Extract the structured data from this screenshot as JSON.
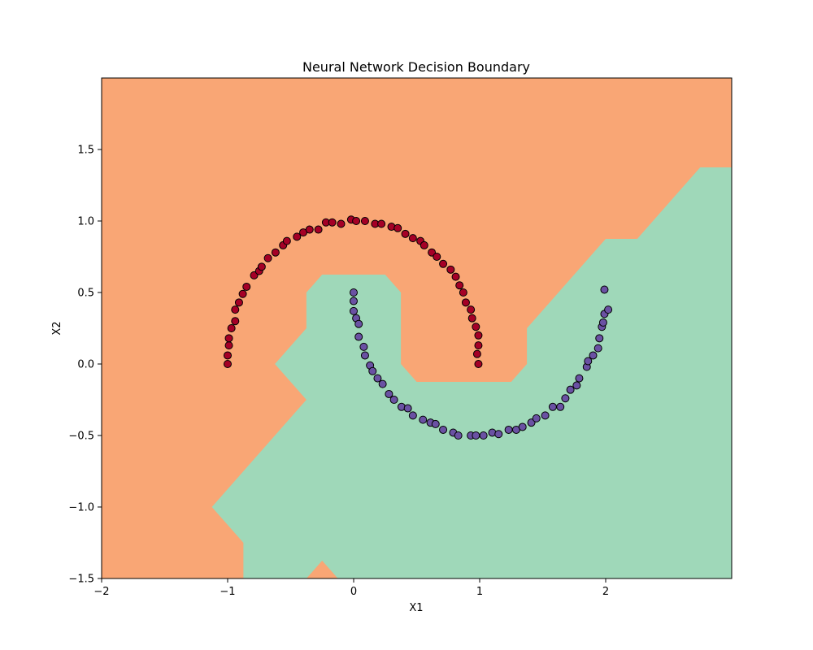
{
  "chart_data": {
    "type": "scatter",
    "title": "Neural Network Decision Boundary",
    "xlabel": "X1",
    "ylabel": "X2",
    "xlim": [
      -2,
      3
    ],
    "ylim": [
      -1.5,
      2
    ],
    "xticks": [
      -2,
      -1,
      0,
      1,
      2
    ],
    "yticks": [
      -1.5,
      -1.0,
      -0.5,
      0.0,
      0.5,
      1.0,
      1.5
    ],
    "xtick_labels": [
      "−2",
      "−1",
      "0",
      "1",
      "2"
    ],
    "ytick_labels": [
      "−1.5",
      "−1.0",
      "−0.5",
      "0.0",
      "0.5",
      "1.0",
      "1.5"
    ],
    "grid": false,
    "colors": {
      "region_class0": "#f9a675",
      "region_class1": "#9fd8b9",
      "points_class0": "#a50026",
      "points_class1": "#6a51a3",
      "point_edge": "#000000"
    },
    "decision_region_class1": [
      [
        3.0,
        1.375
      ],
      [
        2.75,
        1.375
      ],
      [
        2.25,
        0.875
      ],
      [
        2.0,
        0.875
      ],
      [
        1.375,
        0.25
      ],
      [
        1.375,
        0.0
      ],
      [
        1.25,
        -0.125
      ],
      [
        0.5,
        -0.125
      ],
      [
        0.375,
        0.0
      ],
      [
        0.375,
        0.5
      ],
      [
        0.25,
        0.625
      ],
      [
        -0.25,
        0.625
      ],
      [
        -0.375,
        0.5
      ],
      [
        -0.375,
        0.25
      ],
      [
        -0.625,
        0.0
      ],
      [
        -0.375,
        -0.25
      ],
      [
        -1.125,
        -1.0
      ],
      [
        -0.875,
        -1.25
      ],
      [
        -0.875,
        -1.5
      ],
      [
        -0.375,
        -1.5
      ],
      [
        -0.25,
        -1.375
      ],
      [
        -0.125,
        -1.5
      ],
      [
        3.0,
        -1.5
      ]
    ],
    "series": [
      {
        "class": 0,
        "points": [
          [
            -1.0,
            0.0
          ],
          [
            -1.0,
            0.06
          ],
          [
            -0.99,
            0.13
          ],
          [
            -0.99,
            0.18
          ],
          [
            -0.97,
            0.25
          ],
          [
            -0.94,
            0.3
          ],
          [
            -0.94,
            0.38
          ],
          [
            -0.91,
            0.43
          ],
          [
            -0.88,
            0.49
          ],
          [
            -0.85,
            0.54
          ],
          [
            -0.79,
            0.62
          ],
          [
            -0.75,
            0.65
          ],
          [
            -0.73,
            0.68
          ],
          [
            -0.68,
            0.74
          ],
          [
            -0.62,
            0.78
          ],
          [
            -0.56,
            0.83
          ],
          [
            -0.53,
            0.86
          ],
          [
            -0.45,
            0.89
          ],
          [
            -0.4,
            0.92
          ],
          [
            -0.35,
            0.94
          ],
          [
            -0.28,
            0.94
          ],
          [
            -0.22,
            0.99
          ],
          [
            -0.17,
            0.99
          ],
          [
            -0.1,
            0.98
          ],
          [
            -0.02,
            1.01
          ],
          [
            0.02,
            1.0
          ],
          [
            0.09,
            1.0
          ],
          [
            0.17,
            0.98
          ],
          [
            0.22,
            0.98
          ],
          [
            0.3,
            0.96
          ],
          [
            0.35,
            0.95
          ],
          [
            0.41,
            0.91
          ],
          [
            0.47,
            0.88
          ],
          [
            0.53,
            0.86
          ],
          [
            0.56,
            0.83
          ],
          [
            0.62,
            0.78
          ],
          [
            0.66,
            0.75
          ],
          [
            0.71,
            0.7
          ],
          [
            0.77,
            0.66
          ],
          [
            0.81,
            0.61
          ],
          [
            0.84,
            0.55
          ],
          [
            0.87,
            0.5
          ],
          [
            0.89,
            0.43
          ],
          [
            0.93,
            0.38
          ],
          [
            0.94,
            0.32
          ],
          [
            0.97,
            0.26
          ],
          [
            0.99,
            0.2
          ],
          [
            0.99,
            0.13
          ],
          [
            0.98,
            0.07
          ],
          [
            0.99,
            0.0
          ]
        ]
      },
      {
        "class": 1,
        "points": [
          [
            0.0,
            0.5
          ],
          [
            0.0,
            0.44
          ],
          [
            0.0,
            0.37
          ],
          [
            0.02,
            0.32
          ],
          [
            0.04,
            0.28
          ],
          [
            0.04,
            0.19
          ],
          [
            0.08,
            0.12
          ],
          [
            0.09,
            0.06
          ],
          [
            0.13,
            -0.01
          ],
          [
            0.15,
            -0.05
          ],
          [
            0.19,
            -0.1
          ],
          [
            0.23,
            -0.14
          ],
          [
            0.28,
            -0.21
          ],
          [
            0.32,
            -0.25
          ],
          [
            0.38,
            -0.3
          ],
          [
            0.43,
            -0.31
          ],
          [
            0.47,
            -0.36
          ],
          [
            0.55,
            -0.39
          ],
          [
            0.61,
            -0.41
          ],
          [
            0.65,
            -0.42
          ],
          [
            0.71,
            -0.46
          ],
          [
            0.79,
            -0.48
          ],
          [
            0.83,
            -0.5
          ],
          [
            0.93,
            -0.5
          ],
          [
            0.97,
            -0.5
          ],
          [
            1.03,
            -0.5
          ],
          [
            1.1,
            -0.48
          ],
          [
            1.15,
            -0.49
          ],
          [
            1.23,
            -0.46
          ],
          [
            1.29,
            -0.46
          ],
          [
            1.34,
            -0.44
          ],
          [
            1.41,
            -0.41
          ],
          [
            1.45,
            -0.38
          ],
          [
            1.52,
            -0.36
          ],
          [
            1.58,
            -0.3
          ],
          [
            1.64,
            -0.3
          ],
          [
            1.68,
            -0.24
          ],
          [
            1.72,
            -0.18
          ],
          [
            1.77,
            -0.15
          ],
          [
            1.79,
            -0.1
          ],
          [
            1.85,
            -0.02
          ],
          [
            1.86,
            0.02
          ],
          [
            1.9,
            0.06
          ],
          [
            1.94,
            0.11
          ],
          [
            1.95,
            0.18
          ],
          [
            1.97,
            0.26
          ],
          [
            1.98,
            0.29
          ],
          [
            1.99,
            0.35
          ],
          [
            2.02,
            0.38
          ],
          [
            1.99,
            0.52
          ]
        ]
      }
    ]
  }
}
